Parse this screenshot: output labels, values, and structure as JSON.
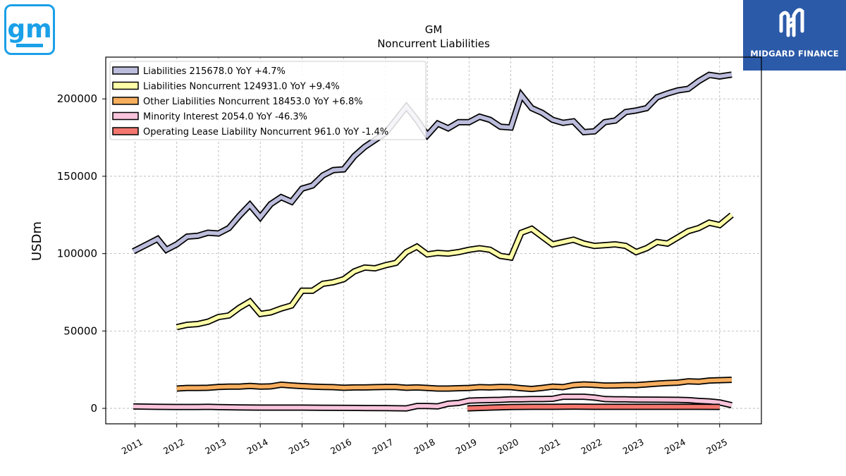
{
  "header": {
    "company": "GM",
    "title": "Noncurrent  Liabilities",
    "brand_logo": {
      "icon": "gm-logo",
      "text": "gm",
      "color": "#1aa0e8"
    },
    "publisher_badge": {
      "icon": "midgard-finance-logo",
      "text": "MIDGARD FINANCE",
      "color": "#2b5aa8"
    }
  },
  "chart_data": {
    "type": "line",
    "title": "GM",
    "subtitle": "Noncurrent  Liabilities",
    "xlabel": "",
    "ylabel": "USDm",
    "ylim": [
      -10000,
      227000
    ],
    "xlim": [
      2010.3,
      2026.0
    ],
    "yticks": [
      0,
      50000,
      100000,
      150000,
      200000
    ],
    "ytick_labels": [
      "0",
      "50000",
      "100000",
      "150000",
      "200000"
    ],
    "xticks": [
      2011,
      2012,
      2013,
      2014,
      2015,
      2016,
      2017,
      2018,
      2019,
      2020,
      2021,
      2022,
      2023,
      2024,
      2025
    ],
    "xtick_labels": [
      "2011",
      "2012",
      "2013",
      "2014",
      "2015",
      "2016",
      "2017",
      "2018",
      "2019",
      "2020",
      "2021",
      "2022",
      "2023",
      "2024",
      "2025"
    ],
    "grid": true,
    "legend_position": "top-left",
    "series": [
      {
        "name": "Liabilities",
        "legend": "Liabilities  215678.0 YoY +4.7%",
        "color": "#bcbcdc",
        "x": [
          2010.96,
          2011.29,
          2011.54,
          2011.75,
          2012.0,
          2012.25,
          2012.5,
          2012.75,
          2013.0,
          2013.25,
          2013.5,
          2013.75,
          2014.0,
          2014.25,
          2014.5,
          2014.75,
          2015.0,
          2015.25,
          2015.5,
          2015.75,
          2016.0,
          2016.25,
          2016.5,
          2016.75,
          2017.0,
          2017.25,
          2017.5,
          2017.75,
          2018.0,
          2018.25,
          2018.5,
          2018.75,
          2019.0,
          2019.25,
          2019.5,
          2019.75,
          2020.0,
          2020.25,
          2020.5,
          2020.75,
          2021.0,
          2021.25,
          2021.5,
          2021.75,
          2022.0,
          2022.25,
          2022.5,
          2022.75,
          2023.0,
          2023.25,
          2023.5,
          2023.75,
          2024.0,
          2024.25,
          2024.5,
          2024.75,
          2025.0,
          2025.29
        ],
        "values": [
          101500,
          106000,
          109500,
          102500,
          106000,
          111000,
          111500,
          113500,
          113000,
          116500,
          124500,
          131500,
          123500,
          132000,
          136500,
          133500,
          142000,
          144000,
          150500,
          154000,
          154500,
          163000,
          169000,
          173500,
          178000,
          186500,
          195000,
          186500,
          176500,
          184000,
          181000,
          185000,
          185000,
          188500,
          186500,
          182000,
          181500,
          202500,
          194000,
          191000,
          186500,
          184500,
          185500,
          178500,
          179000,
          185000,
          186000,
          191500,
          192500,
          194000,
          201000,
          203500,
          205500,
          206500,
          211500,
          215500,
          214500,
          215678
        ]
      },
      {
        "name": "Liabilities Noncurrent",
        "legend": "Liabilities Noncurrent  124931.0 YoY +9.4%",
        "color": "#ffffa8",
        "x": [
          2012.0,
          2012.25,
          2012.5,
          2012.75,
          2013.0,
          2013.25,
          2013.5,
          2013.75,
          2014.0,
          2014.25,
          2014.5,
          2014.75,
          2015.0,
          2015.25,
          2015.5,
          2015.75,
          2016.0,
          2016.25,
          2016.5,
          2016.75,
          2017.0,
          2017.25,
          2017.5,
          2017.75,
          2018.0,
          2018.25,
          2018.5,
          2018.75,
          2019.0,
          2019.25,
          2019.5,
          2019.75,
          2020.0,
          2020.25,
          2020.5,
          2020.75,
          2021.0,
          2021.25,
          2021.5,
          2021.75,
          2022.0,
          2022.25,
          2022.5,
          2022.75,
          2023.0,
          2023.25,
          2023.5,
          2023.75,
          2024.0,
          2024.25,
          2024.5,
          2024.75,
          2025.0,
          2025.29
        ],
        "values": [
          52500,
          54000,
          54500,
          56000,
          59000,
          60000,
          65000,
          69000,
          61000,
          62000,
          64500,
          66500,
          76000,
          76000,
          80500,
          81500,
          83500,
          88500,
          91000,
          90500,
          92500,
          94000,
          101000,
          104500,
          99500,
          100500,
          100000,
          101000,
          102500,
          103500,
          102500,
          98500,
          97500,
          113500,
          116000,
          111000,
          106000,
          107500,
          109000,
          106500,
          105000,
          105500,
          106000,
          105000,
          101000,
          103500,
          107500,
          106500,
          110500,
          114500,
          116500,
          120000,
          118500,
          124931
        ]
      },
      {
        "name": "Other Liabilities Noncurrent",
        "legend": "Other Liabilities Noncurrent  18453.0 YoY +6.8%",
        "color": "#f7ae5e",
        "x": [
          2012.0,
          2012.25,
          2012.5,
          2012.75,
          2013.0,
          2013.25,
          2013.5,
          2013.75,
          2014.0,
          2014.25,
          2014.5,
          2014.75,
          2015.0,
          2015.25,
          2015.5,
          2015.75,
          2016.0,
          2016.25,
          2016.5,
          2016.75,
          2017.0,
          2017.25,
          2017.5,
          2017.75,
          2018.0,
          2018.25,
          2018.5,
          2018.75,
          2019.0,
          2019.25,
          2019.5,
          2019.75,
          2020.0,
          2020.25,
          2020.5,
          2020.75,
          2021.0,
          2021.25,
          2021.5,
          2021.75,
          2022.0,
          2022.25,
          2022.5,
          2022.75,
          2023.0,
          2023.25,
          2023.5,
          2023.75,
          2024.0,
          2024.25,
          2024.5,
          2024.75,
          2025.0,
          2025.29
        ],
        "values": [
          12800,
          13200,
          13200,
          13300,
          13800,
          14000,
          14000,
          14500,
          14000,
          14200,
          15300,
          14800,
          14400,
          14000,
          13800,
          13700,
          13300,
          13500,
          13500,
          13700,
          13800,
          13800,
          13300,
          13500,
          13200,
          12800,
          12800,
          13000,
          13200,
          13700,
          13500,
          13800,
          13700,
          13000,
          12500,
          13200,
          14000,
          13700,
          15000,
          15500,
          15200,
          14700,
          14800,
          15000,
          15000,
          15500,
          16000,
          16400,
          16600,
          17500,
          17200,
          18000,
          18200,
          18453
        ]
      },
      {
        "name": "Minority Interest",
        "legend": "Minority Interest  2054.0 YoY -46.3%",
        "color": "#f9c4dc",
        "x": [
          2010.96,
          2011.5,
          2012.0,
          2012.5,
          2012.75,
          2013.0,
          2013.5,
          2014.0,
          2014.5,
          2015.0,
          2015.5,
          2016.0,
          2016.5,
          2017.0,
          2017.5,
          2017.75,
          2018.0,
          2018.25,
          2018.5,
          2018.75,
          2019.0,
          2019.25,
          2019.5,
          2019.75,
          2020.0,
          2020.25,
          2020.5,
          2020.75,
          2021.0,
          2021.25,
          2021.5,
          2021.75,
          2022.0,
          2022.25,
          2022.5,
          2022.75,
          2023.0,
          2023.5,
          2024.0,
          2024.25,
          2024.5,
          2024.75,
          2025.0,
          2025.29
        ],
        "values": [
          1200,
          1000,
          900,
          900,
          1000,
          800,
          600,
          500,
          500,
          500,
          400,
          300,
          200,
          100,
          0,
          1500,
          1500,
          1300,
          3000,
          3500,
          5000,
          5200,
          5400,
          5500,
          5800,
          5800,
          6000,
          6000,
          6200,
          7500,
          7500,
          7500,
          7000,
          6000,
          5800,
          5800,
          5700,
          5600,
          5500,
          5300,
          4800,
          4500,
          3800,
          2054
        ]
      },
      {
        "name": "Operating Lease Liability Noncurrent",
        "legend": "Operating Lease Liability Noncurrent  961.0 YoY -1.4%",
        "color": "#f4776f",
        "x": [
          2018.96,
          2019.5,
          2020.0,
          2020.5,
          2021.0,
          2021.5,
          2022.0,
          2022.5,
          2023.0,
          2023.5,
          2024.0,
          2024.5,
          2025.0
        ],
        "values": [
          0,
          500,
          900,
          1000,
          1000,
          1100,
          1000,
          1000,
          1000,
          1000,
          1000,
          1000,
          961
        ]
      }
    ]
  }
}
